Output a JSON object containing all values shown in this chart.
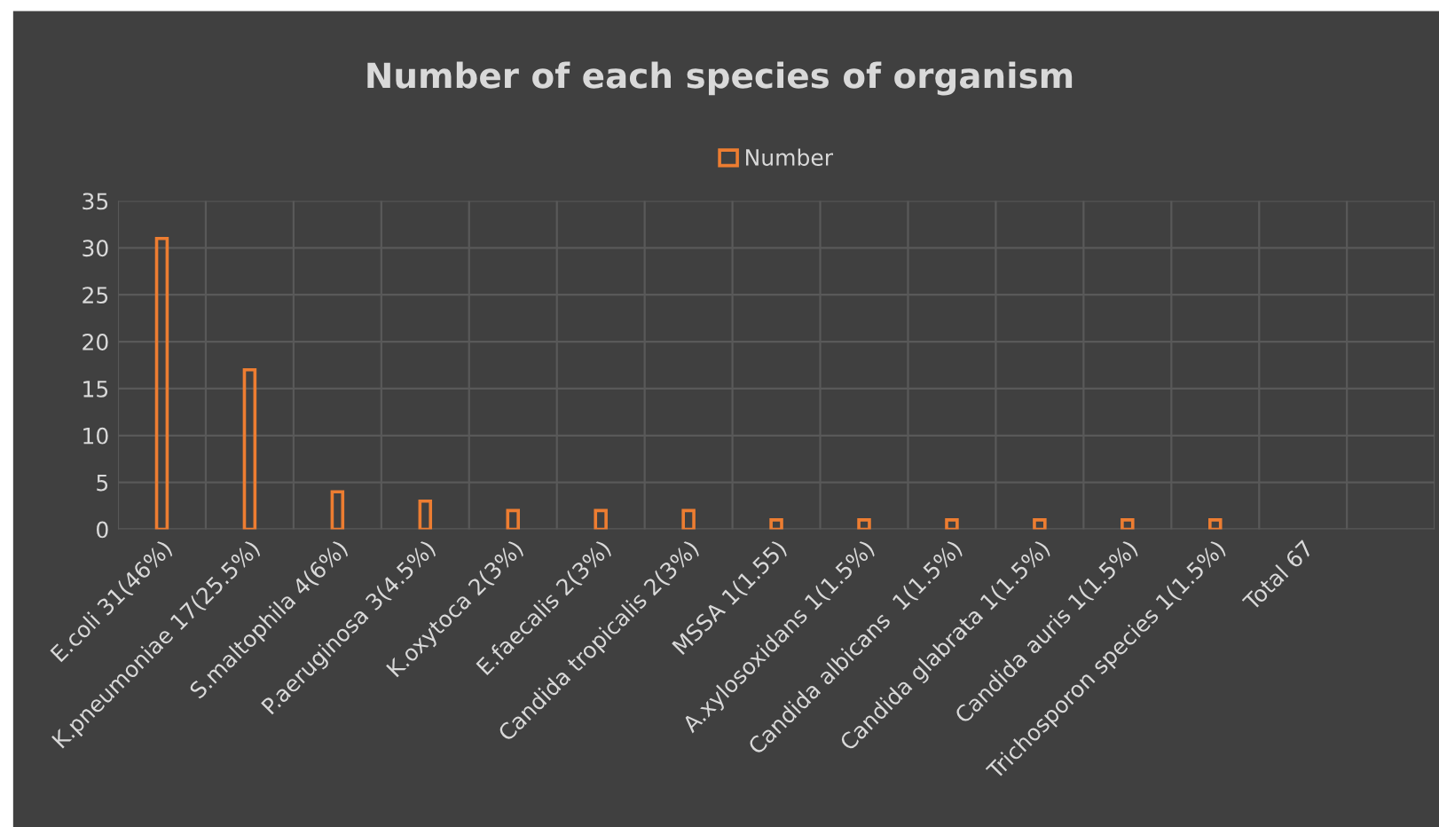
{
  "chart_data": {
    "type": "bar",
    "title": "Number of each species of organism",
    "categories": [
      "E.coli 31(46%)",
      "K.pneumoniae 17(25.5%)",
      "S.maltophila 4(6%)",
      "P.aeruginosa 3(4.5%)",
      "K.oxytoca 2(3%)",
      "E.faecalis 2(3%)",
      "Candida tropicalis 2(3%)",
      "MSSA 1(1.55)",
      "A.xylosoxidans 1(1.5%)",
      "Candida albicans  1(1.5%)",
      "Candida glabrata 1(1.5%)",
      "Candida auris 1(1.5%)",
      "Trichosporon species 1(1.5%)",
      "Total 67",
      null
    ],
    "series": [
      {
        "name": "Number",
        "color": "#ed7d31",
        "values": [
          31,
          17,
          4,
          3,
          2,
          2,
          2,
          1,
          1,
          1,
          1,
          1,
          1,
          null,
          null
        ]
      }
    ],
    "ylim": [
      0,
      35
    ],
    "yticks": [
      0,
      5,
      10,
      15,
      20,
      25,
      30,
      35
    ],
    "grid": true,
    "legend": "top"
  }
}
